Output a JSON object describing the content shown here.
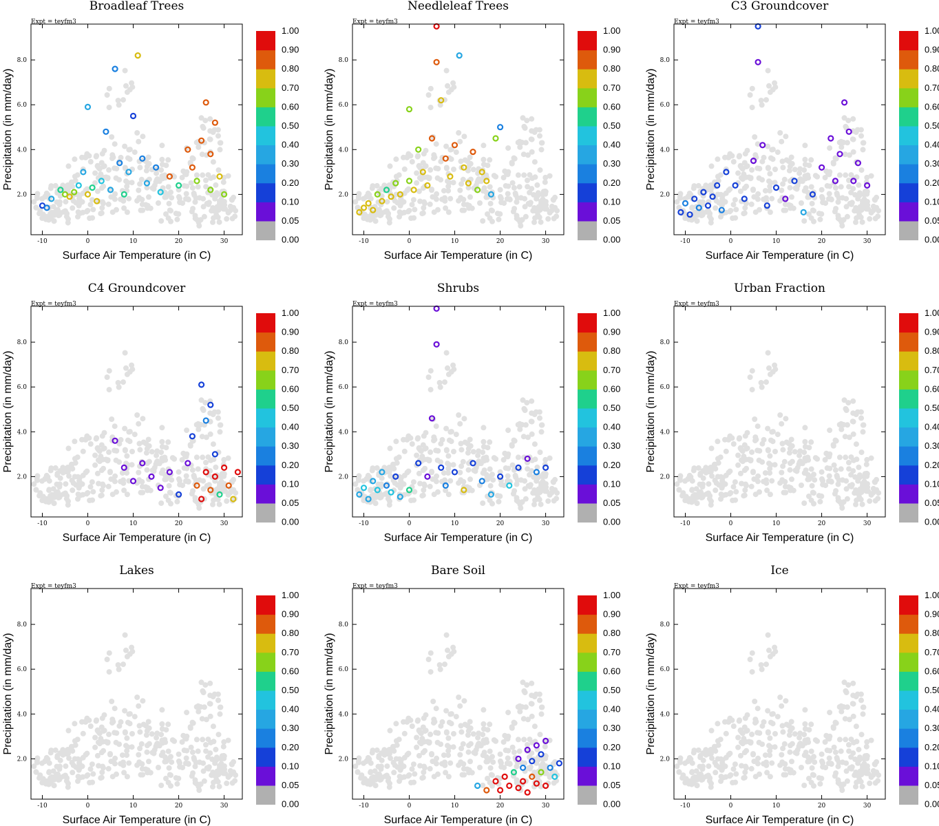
{
  "figure": {
    "expt_label": "Expt = teyfm3",
    "xlabel": "Surface Air Temperature (in C)",
    "ylabel": "Precipitation (in mm/day)"
  },
  "colorbar": {
    "levels": [
      "0.00",
      "0.05",
      "0.10",
      "0.20",
      "0.30",
      "0.40",
      "0.50",
      "0.60",
      "0.70",
      "0.80",
      "0.90",
      "1.00"
    ],
    "level_values": [
      0.0,
      0.05,
      0.1,
      0.2,
      0.3,
      0.4,
      0.5,
      0.6,
      0.7,
      0.8,
      0.9,
      1.0
    ],
    "colors": [
      "#b0b0b0",
      "#6a0fd8",
      "#1540d8",
      "#1a80e0",
      "#26a6e2",
      "#22c3de",
      "#1fd08c",
      "#88d21a",
      "#d8bc10",
      "#de5a0c",
      "#e00c0c"
    ],
    "note_bin_colors": "colors[i] applies to fraction in [levels[i], levels[i+1])"
  },
  "background_color": "#e0e0e0",
  "chart_data": [
    {
      "type": "scatter",
      "title": "Broadleaf Trees",
      "xlabel": "Surface Air Temperature (in C)",
      "ylabel": "Precipitation (in mm/day)",
      "xlim": [
        -12.5,
        34
      ],
      "ylim": [
        0.2,
        9.6
      ],
      "xticks": [
        "-10",
        "0",
        "10",
        "20",
        "30"
      ],
      "yticks": [
        "2.0",
        "4.0",
        "6.0",
        "8.0"
      ],
      "colored_points": [
        [
          -10,
          1.5,
          0.1
        ],
        [
          -9,
          1.4,
          0.2
        ],
        [
          -8,
          1.8,
          0.3
        ],
        [
          -6,
          2.2,
          0.5
        ],
        [
          -5,
          2.0,
          0.6
        ],
        [
          -4,
          1.9,
          0.7
        ],
        [
          -3,
          2.1,
          0.6
        ],
        [
          -2,
          2.4,
          0.4
        ],
        [
          -1,
          3.0,
          0.3
        ],
        [
          0,
          2.0,
          0.7
        ],
        [
          0,
          5.9,
          0.3
        ],
        [
          1,
          2.3,
          0.5
        ],
        [
          2,
          1.7,
          0.7
        ],
        [
          3,
          2.6,
          0.4
        ],
        [
          4,
          4.8,
          0.2
        ],
        [
          5,
          2.2,
          0.3
        ],
        [
          6,
          7.6,
          0.2
        ],
        [
          7,
          3.4,
          0.2
        ],
        [
          8,
          2.0,
          0.5
        ],
        [
          9,
          3.0,
          0.3
        ],
        [
          10,
          5.5,
          0.1
        ],
        [
          11,
          8.2,
          0.7
        ],
        [
          12,
          3.6,
          0.2
        ],
        [
          13,
          2.5,
          0.3
        ],
        [
          15,
          3.2,
          0.2
        ],
        [
          16,
          2.1,
          0.4
        ],
        [
          18,
          2.8,
          0.8
        ],
        [
          20,
          2.4,
          0.5
        ],
        [
          22,
          4.0,
          0.8
        ],
        [
          23,
          3.2,
          0.8
        ],
        [
          24,
          2.6,
          0.6
        ],
        [
          25,
          4.4,
          0.8
        ],
        [
          26,
          6.1,
          0.8
        ],
        [
          27,
          3.8,
          0.8
        ],
        [
          27,
          2.2,
          0.6
        ],
        [
          28,
          5.2,
          0.8
        ],
        [
          29,
          2.8,
          0.7
        ],
        [
          30,
          2.0,
          0.6
        ]
      ]
    },
    {
      "type": "scatter",
      "title": "Needleleaf Trees",
      "xlabel": "Surface Air Temperature (in C)",
      "ylabel": "Precipitation (in mm/day)",
      "xlim": [
        -12.5,
        34
      ],
      "ylim": [
        0.2,
        9.6
      ],
      "xticks": [
        "-10",
        "0",
        "10",
        "20",
        "30"
      ],
      "yticks": [
        "2.0",
        "4.0",
        "6.0",
        "8.0"
      ],
      "colored_points": [
        [
          -11,
          1.2,
          0.7
        ],
        [
          -10,
          1.4,
          0.7
        ],
        [
          -9,
          1.6,
          0.7
        ],
        [
          -8,
          1.3,
          0.7
        ],
        [
          -7,
          2.0,
          0.6
        ],
        [
          -6,
          1.7,
          0.7
        ],
        [
          -5,
          2.2,
          0.5
        ],
        [
          -4,
          1.9,
          0.7
        ],
        [
          -3,
          2.5,
          0.6
        ],
        [
          -2,
          2.0,
          0.7
        ],
        [
          0,
          2.6,
          0.6
        ],
        [
          0,
          5.8,
          0.6
        ],
        [
          1,
          2.2,
          0.7
        ],
        [
          2,
          4.0,
          0.6
        ],
        [
          3,
          3.0,
          0.7
        ],
        [
          4,
          2.4,
          0.7
        ],
        [
          5,
          4.5,
          0.8
        ],
        [
          6,
          7.9,
          0.8
        ],
        [
          6,
          9.5,
          0.9
        ],
        [
          7,
          6.2,
          0.7
        ],
        [
          8,
          3.6,
          0.8
        ],
        [
          9,
          2.8,
          0.7
        ],
        [
          10,
          4.2,
          0.8
        ],
        [
          11,
          8.2,
          0.3
        ],
        [
          12,
          3.2,
          0.7
        ],
        [
          13,
          2.5,
          0.7
        ],
        [
          14,
          3.9,
          0.8
        ],
        [
          15,
          2.2,
          0.6
        ],
        [
          16,
          3.0,
          0.7
        ],
        [
          17,
          2.6,
          0.7
        ],
        [
          18,
          2.0,
          0.3
        ],
        [
          19,
          4.5,
          0.6
        ],
        [
          20,
          5.0,
          0.2
        ]
      ]
    },
    {
      "type": "scatter",
      "title": "C3 Groundcover",
      "xlabel": "Surface Air Temperature (in C)",
      "ylabel": "Precipitation (in mm/day)",
      "xlim": [
        -12.5,
        34
      ],
      "ylim": [
        0.2,
        9.6
      ],
      "xticks": [
        "-10",
        "0",
        "10",
        "20",
        "30"
      ],
      "yticks": [
        "2.0",
        "4.0",
        "6.0",
        "8.0"
      ],
      "colored_points": [
        [
          -11,
          1.2,
          0.1
        ],
        [
          -10,
          1.6,
          0.2
        ],
        [
          -9,
          1.1,
          0.1
        ],
        [
          -8,
          1.8,
          0.1
        ],
        [
          -7,
          1.4,
          0.2
        ],
        [
          -6,
          2.1,
          0.1
        ],
        [
          -5,
          1.5,
          0.1
        ],
        [
          -4,
          1.9,
          0.1
        ],
        [
          -3,
          2.4,
          0.1
        ],
        [
          -2,
          1.3,
          0.2
        ],
        [
          -1,
          3.0,
          0.1
        ],
        [
          1,
          2.4,
          0.1
        ],
        [
          3,
          1.8,
          0.1
        ],
        [
          5,
          3.5,
          0.05
        ],
        [
          6,
          7.9,
          0.05
        ],
        [
          6,
          9.5,
          0.1
        ],
        [
          7,
          4.2,
          0.05
        ],
        [
          8,
          1.5,
          0.1
        ],
        [
          10,
          2.3,
          0.1
        ],
        [
          12,
          1.8,
          0.05
        ],
        [
          14,
          2.6,
          0.1
        ],
        [
          16,
          1.2,
          0.3
        ],
        [
          18,
          2.0,
          0.1
        ],
        [
          20,
          3.2,
          0.05
        ],
        [
          22,
          4.5,
          0.05
        ],
        [
          23,
          2.6,
          0.05
        ],
        [
          24,
          3.8,
          0.05
        ],
        [
          25,
          6.1,
          0.05
        ],
        [
          26,
          4.8,
          0.05
        ],
        [
          27,
          2.6,
          0.05
        ],
        [
          28,
          3.4,
          0.05
        ],
        [
          30,
          2.4,
          0.05
        ]
      ]
    },
    {
      "type": "scatter",
      "title": "C4 Groundcover",
      "xlabel": "Surface Air Temperature (in C)",
      "ylabel": "Precipitation (in mm/day)",
      "xlim": [
        -12.5,
        34
      ],
      "ylim": [
        0.2,
        9.6
      ],
      "xticks": [
        "-10",
        "0",
        "10",
        "20",
        "30"
      ],
      "yticks": [
        "2.0",
        "4.0",
        "6.0",
        "8.0"
      ],
      "colored_points": [
        [
          6,
          3.6,
          0.05
        ],
        [
          8,
          2.4,
          0.05
        ],
        [
          10,
          1.8,
          0.05
        ],
        [
          12,
          2.6,
          0.05
        ],
        [
          14,
          2.0,
          0.05
        ],
        [
          16,
          1.5,
          0.05
        ],
        [
          18,
          2.2,
          0.05
        ],
        [
          20,
          1.2,
          0.1
        ],
        [
          22,
          2.6,
          0.05
        ],
        [
          23,
          3.8,
          0.1
        ],
        [
          24,
          1.6,
          0.8
        ],
        [
          25,
          6.1,
          0.1
        ],
        [
          25,
          1.0,
          0.9
        ],
        [
          26,
          4.5,
          0.2
        ],
        [
          26,
          2.2,
          0.9
        ],
        [
          27,
          5.2,
          0.1
        ],
        [
          27,
          1.4,
          0.8
        ],
        [
          28,
          3.0,
          0.1
        ],
        [
          28,
          2.0,
          0.9
        ],
        [
          29,
          1.2,
          0.5
        ],
        [
          30,
          2.4,
          0.9
        ],
        [
          31,
          1.6,
          0.8
        ],
        [
          32,
          1.0,
          0.7
        ],
        [
          33,
          2.2,
          0.9
        ]
      ]
    },
    {
      "type": "scatter",
      "title": "Shrubs",
      "xlabel": "Surface Air Temperature (in C)",
      "ylabel": "Precipitation (in mm/day)",
      "xlim": [
        -12.5,
        34
      ],
      "ylim": [
        0.2,
        9.6
      ],
      "xticks": [
        "-10",
        "0",
        "10",
        "20",
        "30"
      ],
      "yticks": [
        "2.0",
        "4.0",
        "6.0",
        "8.0"
      ],
      "colored_points": [
        [
          -11,
          1.2,
          0.3
        ],
        [
          -10,
          1.5,
          0.4
        ],
        [
          -9,
          1.0,
          0.3
        ],
        [
          -8,
          1.8,
          0.3
        ],
        [
          -7,
          1.4,
          0.4
        ],
        [
          -6,
          2.2,
          0.3
        ],
        [
          -5,
          1.6,
          0.2
        ],
        [
          -4,
          1.3,
          0.4
        ],
        [
          -3,
          2.0,
          0.1
        ],
        [
          -2,
          1.1,
          0.3
        ],
        [
          0,
          1.4,
          0.5
        ],
        [
          2,
          2.6,
          0.1
        ],
        [
          4,
          2.0,
          0.05
        ],
        [
          5,
          4.6,
          0.05
        ],
        [
          6,
          7.9,
          0.05
        ],
        [
          6,
          9.5,
          0.05
        ],
        [
          7,
          2.4,
          0.1
        ],
        [
          8,
          1.6,
          0.2
        ],
        [
          10,
          2.2,
          0.1
        ],
        [
          12,
          1.4,
          0.7
        ],
        [
          14,
          2.6,
          0.1
        ],
        [
          16,
          1.8,
          0.2
        ],
        [
          18,
          1.2,
          0.3
        ],
        [
          20,
          2.0,
          0.1
        ],
        [
          22,
          1.6,
          0.4
        ],
        [
          24,
          2.4,
          0.1
        ],
        [
          26,
          2.8,
          0.05
        ],
        [
          28,
          2.2,
          0.2
        ],
        [
          30,
          2.4,
          0.1
        ]
      ]
    },
    {
      "type": "scatter",
      "title": "Urban Fraction",
      "xlabel": "Surface Air Temperature (in C)",
      "ylabel": "Precipitation (in mm/day)",
      "xlim": [
        -12.5,
        34
      ],
      "ylim": [
        0.2,
        9.6
      ],
      "xticks": [
        "-10",
        "0",
        "10",
        "20",
        "30"
      ],
      "yticks": [
        "2.0",
        "4.0",
        "6.0",
        "8.0"
      ],
      "colored_points": []
    },
    {
      "type": "scatter",
      "title": "Lakes",
      "xlabel": "Surface Air Temperature (in C)",
      "ylabel": "Precipitation (in mm/day)",
      "xlim": [
        -12.5,
        34
      ],
      "ylim": [
        0.2,
        9.6
      ],
      "xticks": [
        "-10",
        "0",
        "10",
        "20",
        "30"
      ],
      "yticks": [
        "2.0",
        "4.0",
        "6.0",
        "8.0"
      ],
      "colored_points": []
    },
    {
      "type": "scatter",
      "title": "Bare Soil",
      "xlabel": "Surface Air Temperature (in C)",
      "ylabel": "Precipitation (in mm/day)",
      "xlim": [
        -12.5,
        34
      ],
      "ylim": [
        0.2,
        9.6
      ],
      "xticks": [
        "-10",
        "0",
        "10",
        "20",
        "30"
      ],
      "yticks": [
        "2.0",
        "4.0",
        "6.0",
        "8.0"
      ],
      "colored_points": [
        [
          15,
          0.8,
          0.3
        ],
        [
          17,
          0.6,
          0.8
        ],
        [
          19,
          1.0,
          0.9
        ],
        [
          20,
          0.6,
          0.9
        ],
        [
          21,
          1.2,
          0.9
        ],
        [
          22,
          0.8,
          0.9
        ],
        [
          23,
          1.4,
          0.5
        ],
        [
          24,
          0.7,
          0.9
        ],
        [
          24,
          2.0,
          0.05
        ],
        [
          25,
          1.0,
          0.9
        ],
        [
          25,
          1.6,
          0.2
        ],
        [
          26,
          2.4,
          0.05
        ],
        [
          26,
          0.5,
          0.9
        ],
        [
          27,
          1.2,
          0.8
        ],
        [
          27,
          1.9,
          0.1
        ],
        [
          28,
          0.9,
          0.9
        ],
        [
          28,
          2.6,
          0.05
        ],
        [
          29,
          1.4,
          0.6
        ],
        [
          29,
          2.2,
          0.1
        ],
        [
          30,
          0.8,
          0.9
        ],
        [
          30,
          2.8,
          0.05
        ],
        [
          31,
          1.6,
          0.2
        ],
        [
          32,
          1.2,
          0.4
        ],
        [
          33,
          1.8,
          0.1
        ]
      ]
    },
    {
      "type": "scatter",
      "title": "Ice",
      "xlabel": "Surface Air Temperature (in C)",
      "ylabel": "Precipitation (in mm/day)",
      "xlim": [
        -12.5,
        34
      ],
      "ylim": [
        0.2,
        9.6
      ],
      "xticks": [
        "-10",
        "0",
        "10",
        "20",
        "30"
      ],
      "yticks": [
        "2.0",
        "4.0",
        "6.0",
        "8.0"
      ],
      "colored_points": []
    }
  ]
}
